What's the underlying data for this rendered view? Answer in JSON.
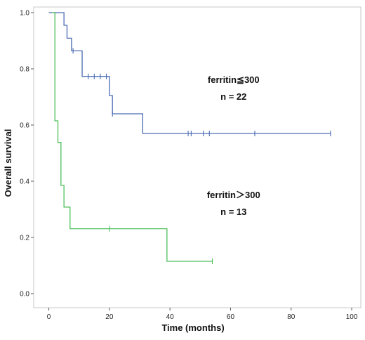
{
  "chart_data": {
    "type": "line",
    "title": "",
    "xlabel": "Time (months)",
    "ylabel": "Overall survival",
    "xlim": [
      -5,
      103
    ],
    "ylim": [
      -0.05,
      1.02
    ],
    "x_ticks": [
      0,
      20,
      40,
      60,
      80,
      100
    ],
    "y_ticks": [
      0.0,
      0.2,
      0.4,
      0.6,
      0.8,
      1.0
    ],
    "x_tick_labels": [
      "0",
      "20",
      "40",
      "60",
      "80",
      "100"
    ],
    "y_tick_labels": [
      "0.0",
      "0.2",
      "0.4",
      "0.6",
      "0.8",
      "1.0"
    ],
    "grid": false,
    "series": [
      {
        "name": "ferritin≦300",
        "color": "#4a6cb3",
        "steps": [
          [
            0,
            1.0
          ],
          [
            5,
            0.955
          ],
          [
            6,
            0.909
          ],
          [
            7.5,
            0.864
          ],
          [
            10,
            0.864
          ],
          [
            11,
            0.773
          ],
          [
            19.5,
            0.773
          ],
          [
            20,
            0.705
          ],
          [
            21,
            0.64
          ],
          [
            31,
            0.57
          ],
          [
            93,
            0.57
          ]
        ],
        "censored": [
          [
            8,
            0.864
          ],
          [
            13,
            0.773
          ],
          [
            15,
            0.773
          ],
          [
            17,
            0.773
          ],
          [
            19,
            0.773
          ],
          [
            21,
            0.64
          ],
          [
            46,
            0.57
          ],
          [
            47,
            0.57
          ],
          [
            51,
            0.57
          ],
          [
            53,
            0.57
          ],
          [
            68,
            0.57
          ],
          [
            93,
            0.57
          ]
        ]
      },
      {
        "name": "ferritin＞300",
        "color": "#4dbf5a",
        "steps": [
          [
            1,
            1.0
          ],
          [
            2,
            0.615
          ],
          [
            3,
            0.538
          ],
          [
            4,
            0.385
          ],
          [
            5,
            0.308
          ],
          [
            7,
            0.231
          ],
          [
            39,
            0.115
          ],
          [
            54,
            0.115
          ]
        ],
        "censored": [
          [
            20,
            0.231
          ],
          [
            54,
            0.115
          ]
        ]
      }
    ],
    "annotations": [
      {
        "text": "ferritin≦300",
        "x": 61,
        "y": 0.75
      },
      {
        "text": "n = 22",
        "x": 61,
        "y": 0.69
      },
      {
        "text": "ferritin＞300",
        "x": 61,
        "y": 0.34
      },
      {
        "text": "n = 13",
        "x": 61,
        "y": 0.28
      }
    ]
  }
}
